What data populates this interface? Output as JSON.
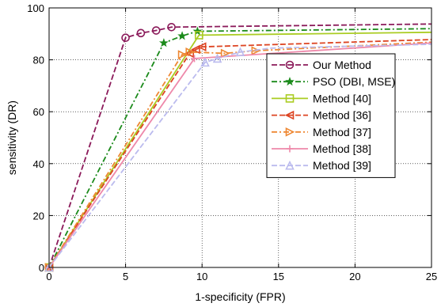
{
  "chart_data": {
    "type": "line",
    "xlabel": "1-specificity (FPR)",
    "ylabel": "sensitivity (DR)",
    "xlim": [
      0,
      25
    ],
    "ylim": [
      0,
      100
    ],
    "xticks": [
      0,
      5,
      10,
      15,
      20,
      25
    ],
    "yticks": [
      0,
      20,
      40,
      60,
      80,
      100
    ],
    "grid": true,
    "legend_position": "right",
    "series": [
      {
        "name": "Our Method",
        "color": "#8B1A5A",
        "dash": "7,3",
        "marker": "circle",
        "points": [
          [
            0,
            0
          ],
          [
            5,
            88.5
          ],
          [
            6,
            90.3
          ],
          [
            7,
            91.3
          ],
          [
            8,
            92.6
          ],
          [
            25,
            93.8
          ]
        ],
        "markers": [
          [
            0,
            0
          ],
          [
            5,
            88.5
          ],
          [
            6,
            90.3
          ],
          [
            7,
            91.3
          ],
          [
            8,
            92.6
          ]
        ]
      },
      {
        "name": "PSO (DBI, MSE)",
        "color": "#1A8A1A",
        "dash": "7,3,2,3",
        "marker": "star",
        "points": [
          [
            0,
            0
          ],
          [
            7.5,
            86.5
          ],
          [
            8.7,
            89.2
          ],
          [
            9.7,
            91
          ],
          [
            25,
            92
          ]
        ],
        "markers": [
          [
            0,
            0
          ],
          [
            7.5,
            86.5
          ],
          [
            8.7,
            89.2
          ],
          [
            9.7,
            91
          ]
        ]
      },
      {
        "name": "Method [40]",
        "color": "#AACC22",
        "dash": "",
        "marker": "square",
        "points": [
          [
            0,
            0
          ],
          [
            9.8,
            89.5
          ],
          [
            25,
            90.6
          ]
        ],
        "markers": [
          [
            0,
            0
          ],
          [
            9.8,
            89.5
          ]
        ]
      },
      {
        "name": "Method [36]",
        "color": "#DD4422",
        "dash": "7,3",
        "marker": "triangle-left",
        "points": [
          [
            0,
            0
          ],
          [
            9.2,
            82.5
          ],
          [
            9.6,
            84
          ],
          [
            10,
            85
          ],
          [
            25,
            87.8
          ]
        ],
        "markers": [
          [
            0,
            0
          ],
          [
            9.2,
            82.5
          ],
          [
            9.6,
            84
          ],
          [
            10,
            85
          ]
        ]
      },
      {
        "name": "Method [37]",
        "color": "#EE8833",
        "dash": "7,3,2,3",
        "marker": "triangle-right",
        "points": [
          [
            0,
            0
          ],
          [
            8.7,
            82
          ],
          [
            9.2,
            83
          ],
          [
            11.5,
            82.5
          ],
          [
            13.5,
            83.5
          ],
          [
            25,
            86.8
          ]
        ],
        "markers": [
          [
            0,
            0
          ],
          [
            8.7,
            82
          ],
          [
            9.2,
            83
          ],
          [
            11.5,
            82.5
          ],
          [
            13.5,
            83.5
          ]
        ]
      },
      {
        "name": "Method [38]",
        "color": "#EE88AA",
        "dash": "",
        "marker": "plus",
        "points": [
          [
            0,
            0
          ],
          [
            9.5,
            80.5
          ],
          [
            25,
            86.5
          ]
        ],
        "markers": [
          [
            0,
            0
          ],
          [
            9.5,
            80.5
          ]
        ]
      },
      {
        "name": "Method [39]",
        "color": "#BBBBEE",
        "dash": "7,3",
        "marker": "triangle-up",
        "points": [
          [
            0,
            0
          ],
          [
            10.2,
            79
          ],
          [
            11,
            80.5
          ],
          [
            12.5,
            83
          ],
          [
            14.5,
            84.5
          ],
          [
            25,
            86
          ]
        ],
        "markers": [
          [
            0,
            0
          ],
          [
            10.2,
            79
          ],
          [
            11,
            80.5
          ],
          [
            12.5,
            83
          ]
        ]
      }
    ]
  }
}
